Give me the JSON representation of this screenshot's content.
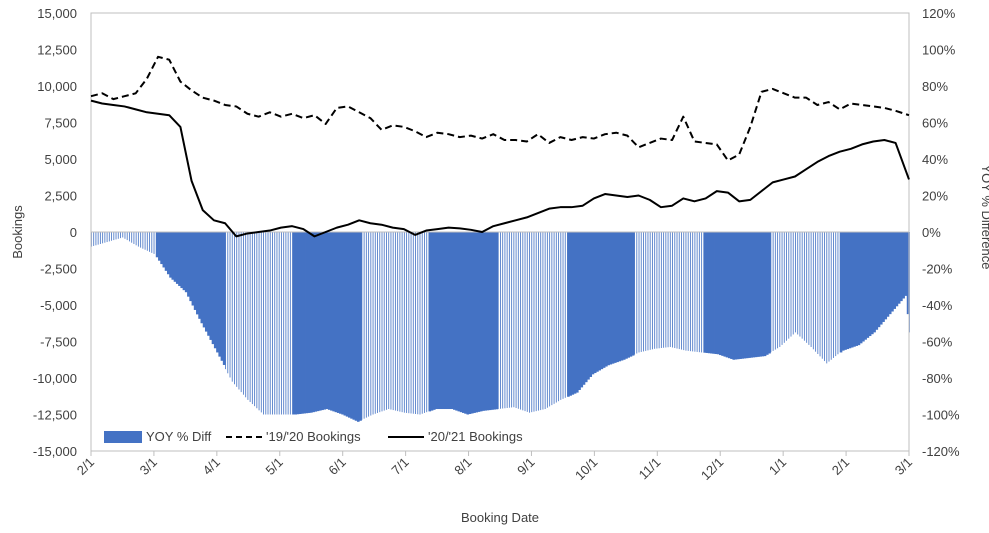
{
  "chart_data": {
    "type": "bar",
    "xlabel": "Booking Date",
    "ylabel_left": "Bookings",
    "ylabel_right": "YOY % Difference",
    "ylim_left": [
      -15000,
      15000
    ],
    "ylim_right": [
      -120,
      120
    ],
    "yticks_left": [
      "15,000",
      "12,500",
      "10,000",
      "7,500",
      "5,000",
      "2,500",
      "0",
      "-2,500",
      "-5,000",
      "-7,500",
      "-10,000",
      "-12,500",
      "-15,000"
    ],
    "yticks_right": [
      "120%",
      "100%",
      "80%",
      "60%",
      "40%",
      "20%",
      "0%",
      "-20%",
      "-40%",
      "-60%",
      "-80%",
      "-100%",
      "-120%"
    ],
    "xticks": [
      "2/1",
      "3/1",
      "4/1",
      "5/1",
      "6/1",
      "7/1",
      "8/1",
      "9/1",
      "10/1",
      "11/1",
      "12/1",
      "1/1",
      "2/1",
      "3/1"
    ],
    "x_start": "2/1",
    "x_end": "3/1",
    "grid": false,
    "legend_position": "bottom-left",
    "colors": {
      "bars": "#4472C4",
      "lines": "#000000"
    },
    "series": [
      {
        "name": "YOY % Diff",
        "type": "bar",
        "axis": "right",
        "x_day": [
          0,
          14,
          21,
          28,
          35,
          42,
          49,
          56,
          63,
          70,
          77,
          84,
          91,
          98,
          105,
          112,
          119,
          126,
          133,
          140,
          147,
          154,
          161,
          168,
          175,
          182,
          189,
          196,
          203,
          210,
          217,
          224,
          231,
          238,
          245,
          252,
          259,
          266,
          273,
          280,
          287,
          294,
          301,
          308,
          315,
          322,
          329,
          336,
          343,
          350,
          357,
          364,
          366
        ],
        "values": [
          -8,
          -3,
          -8,
          -12,
          -25,
          -33,
          -50,
          -66,
          -82,
          -92,
          -100,
          -100,
          -100,
          -99,
          -97,
          -100,
          -104,
          -100,
          -97,
          -99,
          -100,
          -97,
          -97,
          -100,
          -98,
          -97,
          -96,
          -99,
          -97,
          -92,
          -88,
          -78,
          -73,
          -70,
          -66,
          -64,
          -63,
          -65,
          -66,
          -67,
          -70,
          -69,
          -68,
          -63,
          -55,
          -63,
          -72,
          -65,
          -62,
          -55,
          -45,
          -35,
          -55
        ]
      },
      {
        "name": "'19/'20 Bookings",
        "type": "line",
        "axis": "left",
        "style": "dashed",
        "x_day": [
          0,
          5,
          10,
          15,
          20,
          25,
          30,
          35,
          40,
          45,
          50,
          55,
          60,
          65,
          70,
          75,
          80,
          85,
          90,
          95,
          100,
          105,
          110,
          115,
          120,
          125,
          130,
          135,
          140,
          145,
          150,
          155,
          160,
          165,
          170,
          175,
          180,
          185,
          190,
          195,
          200,
          205,
          210,
          215,
          220,
          225,
          230,
          235,
          240,
          245,
          250,
          255,
          260,
          265,
          270,
          275,
          280,
          285,
          290,
          295,
          300,
          305,
          310,
          315,
          320,
          325,
          330,
          335,
          340,
          345,
          350,
          355,
          360,
          366
        ],
        "values": [
          9300,
          9500,
          9100,
          9300,
          9500,
          10500,
          12000,
          11800,
          10300,
          9700,
          9200,
          9000,
          8700,
          8600,
          8100,
          7900,
          8200,
          7900,
          8100,
          7800,
          8000,
          7400,
          8500,
          8600,
          8200,
          7800,
          7000,
          7300,
          7200,
          6900,
          6500,
          6800,
          6700,
          6500,
          6600,
          6400,
          6700,
          6300,
          6300,
          6200,
          6700,
          6100,
          6500,
          6300,
          6500,
          6400,
          6700,
          6800,
          6600,
          5800,
          6100,
          6400,
          6300,
          7900,
          6200,
          6100,
          6000,
          4900,
          5300,
          7200,
          9600,
          9800,
          9500,
          9200,
          9200,
          8700,
          8900,
          8400,
          8800,
          8700,
          8600,
          8500,
          8300,
          8000
        ]
      },
      {
        "name": "'20/'21 Bookings",
        "type": "line",
        "axis": "left",
        "style": "solid",
        "x_day": [
          0,
          5,
          10,
          15,
          20,
          25,
          30,
          35,
          40,
          45,
          50,
          55,
          60,
          65,
          70,
          75,
          80,
          85,
          90,
          95,
          100,
          105,
          110,
          115,
          120,
          125,
          130,
          135,
          140,
          145,
          150,
          155,
          160,
          165,
          170,
          175,
          180,
          185,
          190,
          195,
          200,
          205,
          210,
          215,
          220,
          225,
          230,
          235,
          240,
          245,
          250,
          255,
          260,
          265,
          270,
          275,
          280,
          285,
          290,
          295,
          300,
          305,
          310,
          315,
          320,
          325,
          330,
          335,
          340,
          345,
          350,
          355,
          360,
          366
        ],
        "values": [
          9000,
          8800,
          8700,
          8600,
          8400,
          8200,
          8100,
          8000,
          7200,
          3500,
          1500,
          800,
          600,
          -300,
          -100,
          0,
          100,
          300,
          400,
          200,
          -300,
          0,
          300,
          500,
          800,
          600,
          500,
          300,
          200,
          -200,
          100,
          200,
          300,
          250,
          150,
          0,
          400,
          600,
          800,
          1000,
          1300,
          1600,
          1700,
          1700,
          1800,
          2300,
          2600,
          2500,
          2400,
          2500,
          2200,
          1700,
          1800,
          2300,
          2100,
          2300,
          2800,
          2700,
          2100,
          2200,
          2800,
          3400,
          3600,
          3800,
          4300,
          4800,
          5200,
          5500,
          5700,
          6000,
          6200,
          6300,
          6100,
          3600
        ]
      }
    ]
  }
}
